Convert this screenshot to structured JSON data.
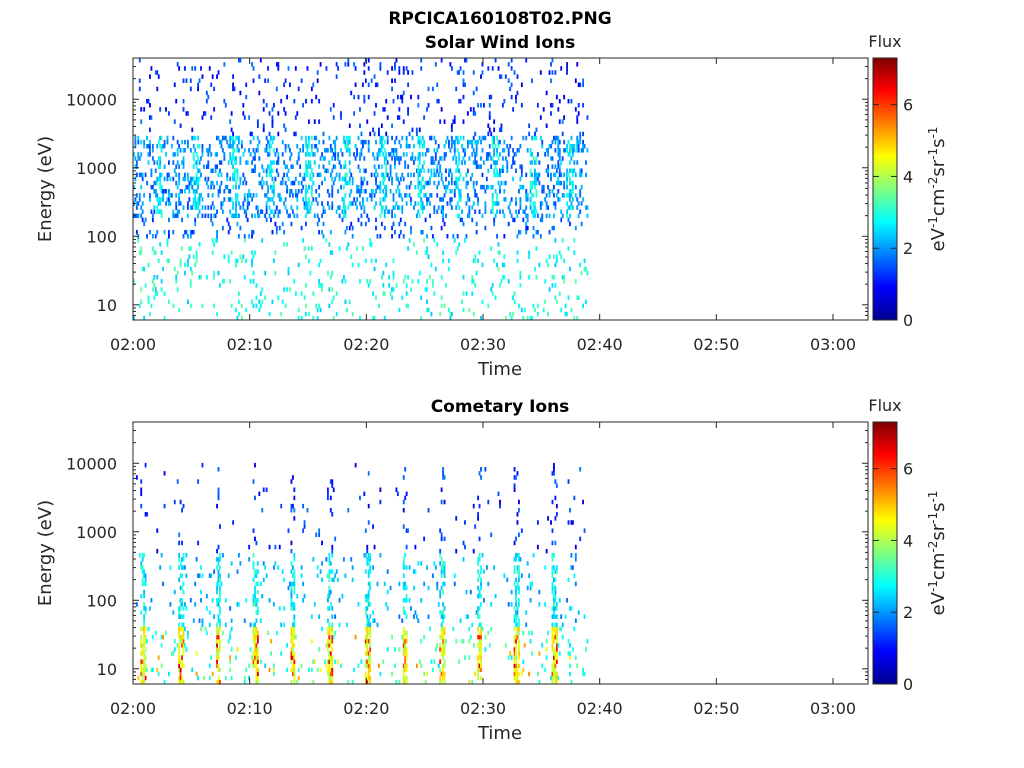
{
  "figure_title": "RPCICA160108T02.PNG",
  "chart_data": [
    {
      "type": "heatmap",
      "title": "Solar Wind Ions",
      "xlabel": "Time",
      "ylabel": "Energy (eV)",
      "x_ticks": [
        "02:00",
        "02:10",
        "02:20",
        "02:30",
        "02:40",
        "02:50",
        "03:00"
      ],
      "x_range": [
        "02:00",
        "03:03"
      ],
      "y_scale": "log",
      "y_ticks": [
        "10",
        "100",
        "1000",
        "10000"
      ],
      "y_range": [
        6,
        40000
      ],
      "data_time_span": [
        "02:00",
        "02:39"
      ],
      "colorbar": {
        "title": "Flux",
        "label": "eV-1cm-2sr-1s-1",
        "ticks": [
          "0",
          "2",
          "4",
          "6"
        ],
        "range": [
          0,
          7.3
        ],
        "colormap": "jet"
      },
      "features": [
        {
          "energy_range_eV": [
            200,
            3000
          ],
          "typical_flux": 2.5,
          "note": "periodic enhancements"
        },
        {
          "energy_range_eV": [
            3000,
            30000
          ],
          "typical_flux": 1.3
        },
        {
          "energy_range_eV": [
            6,
            100
          ],
          "typical_flux": 3.0
        }
      ]
    },
    {
      "type": "heatmap",
      "title": "Cometary Ions",
      "xlabel": "Time",
      "ylabel": "Energy (eV)",
      "x_ticks": [
        "02:00",
        "02:10",
        "02:20",
        "02:30",
        "02:40",
        "02:50",
        "03:00"
      ],
      "x_range": [
        "02:00",
        "03:03"
      ],
      "y_scale": "log",
      "y_ticks": [
        "10",
        "100",
        "1000",
        "10000"
      ],
      "y_range": [
        6,
        40000
      ],
      "data_time_span": [
        "02:00",
        "02:39"
      ],
      "colorbar": {
        "title": "Flux",
        "label": "eV-1cm-2sr-1s-1",
        "ticks": [
          "0",
          "2",
          "4",
          "6"
        ],
        "range": [
          0,
          7.3
        ],
        "colormap": "jet"
      },
      "features": [
        {
          "energy_range_eV": [
            10,
            40
          ],
          "typical_flux": 4.5,
          "peak_flux": 6.5,
          "note": "periodic bursts about every 3 min"
        },
        {
          "energy_range_eV": [
            40,
            500
          ],
          "typical_flux": 2.7
        },
        {
          "energy_range_eV": [
            500,
            10000
          ],
          "typical_flux": 1.3
        }
      ]
    }
  ]
}
